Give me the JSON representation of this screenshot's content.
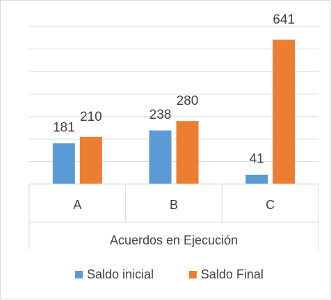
{
  "chart_data": {
    "type": "bar",
    "group_label": "Acuerdos en Ejecución",
    "categories": [
      "A",
      "B",
      "C"
    ],
    "series": [
      {
        "name": "Saldo inicial",
        "color": "#5b9bd5",
        "values": [
          181,
          238,
          41
        ]
      },
      {
        "name": "Saldo Final",
        "color": "#ed7d31",
        "values": [
          210,
          280,
          641
        ]
      }
    ],
    "ylim": [
      0,
      700
    ],
    "yticks": [
      0,
      100,
      200,
      300,
      400,
      500,
      600,
      700
    ],
    "grid": true,
    "legend": "bottom"
  }
}
